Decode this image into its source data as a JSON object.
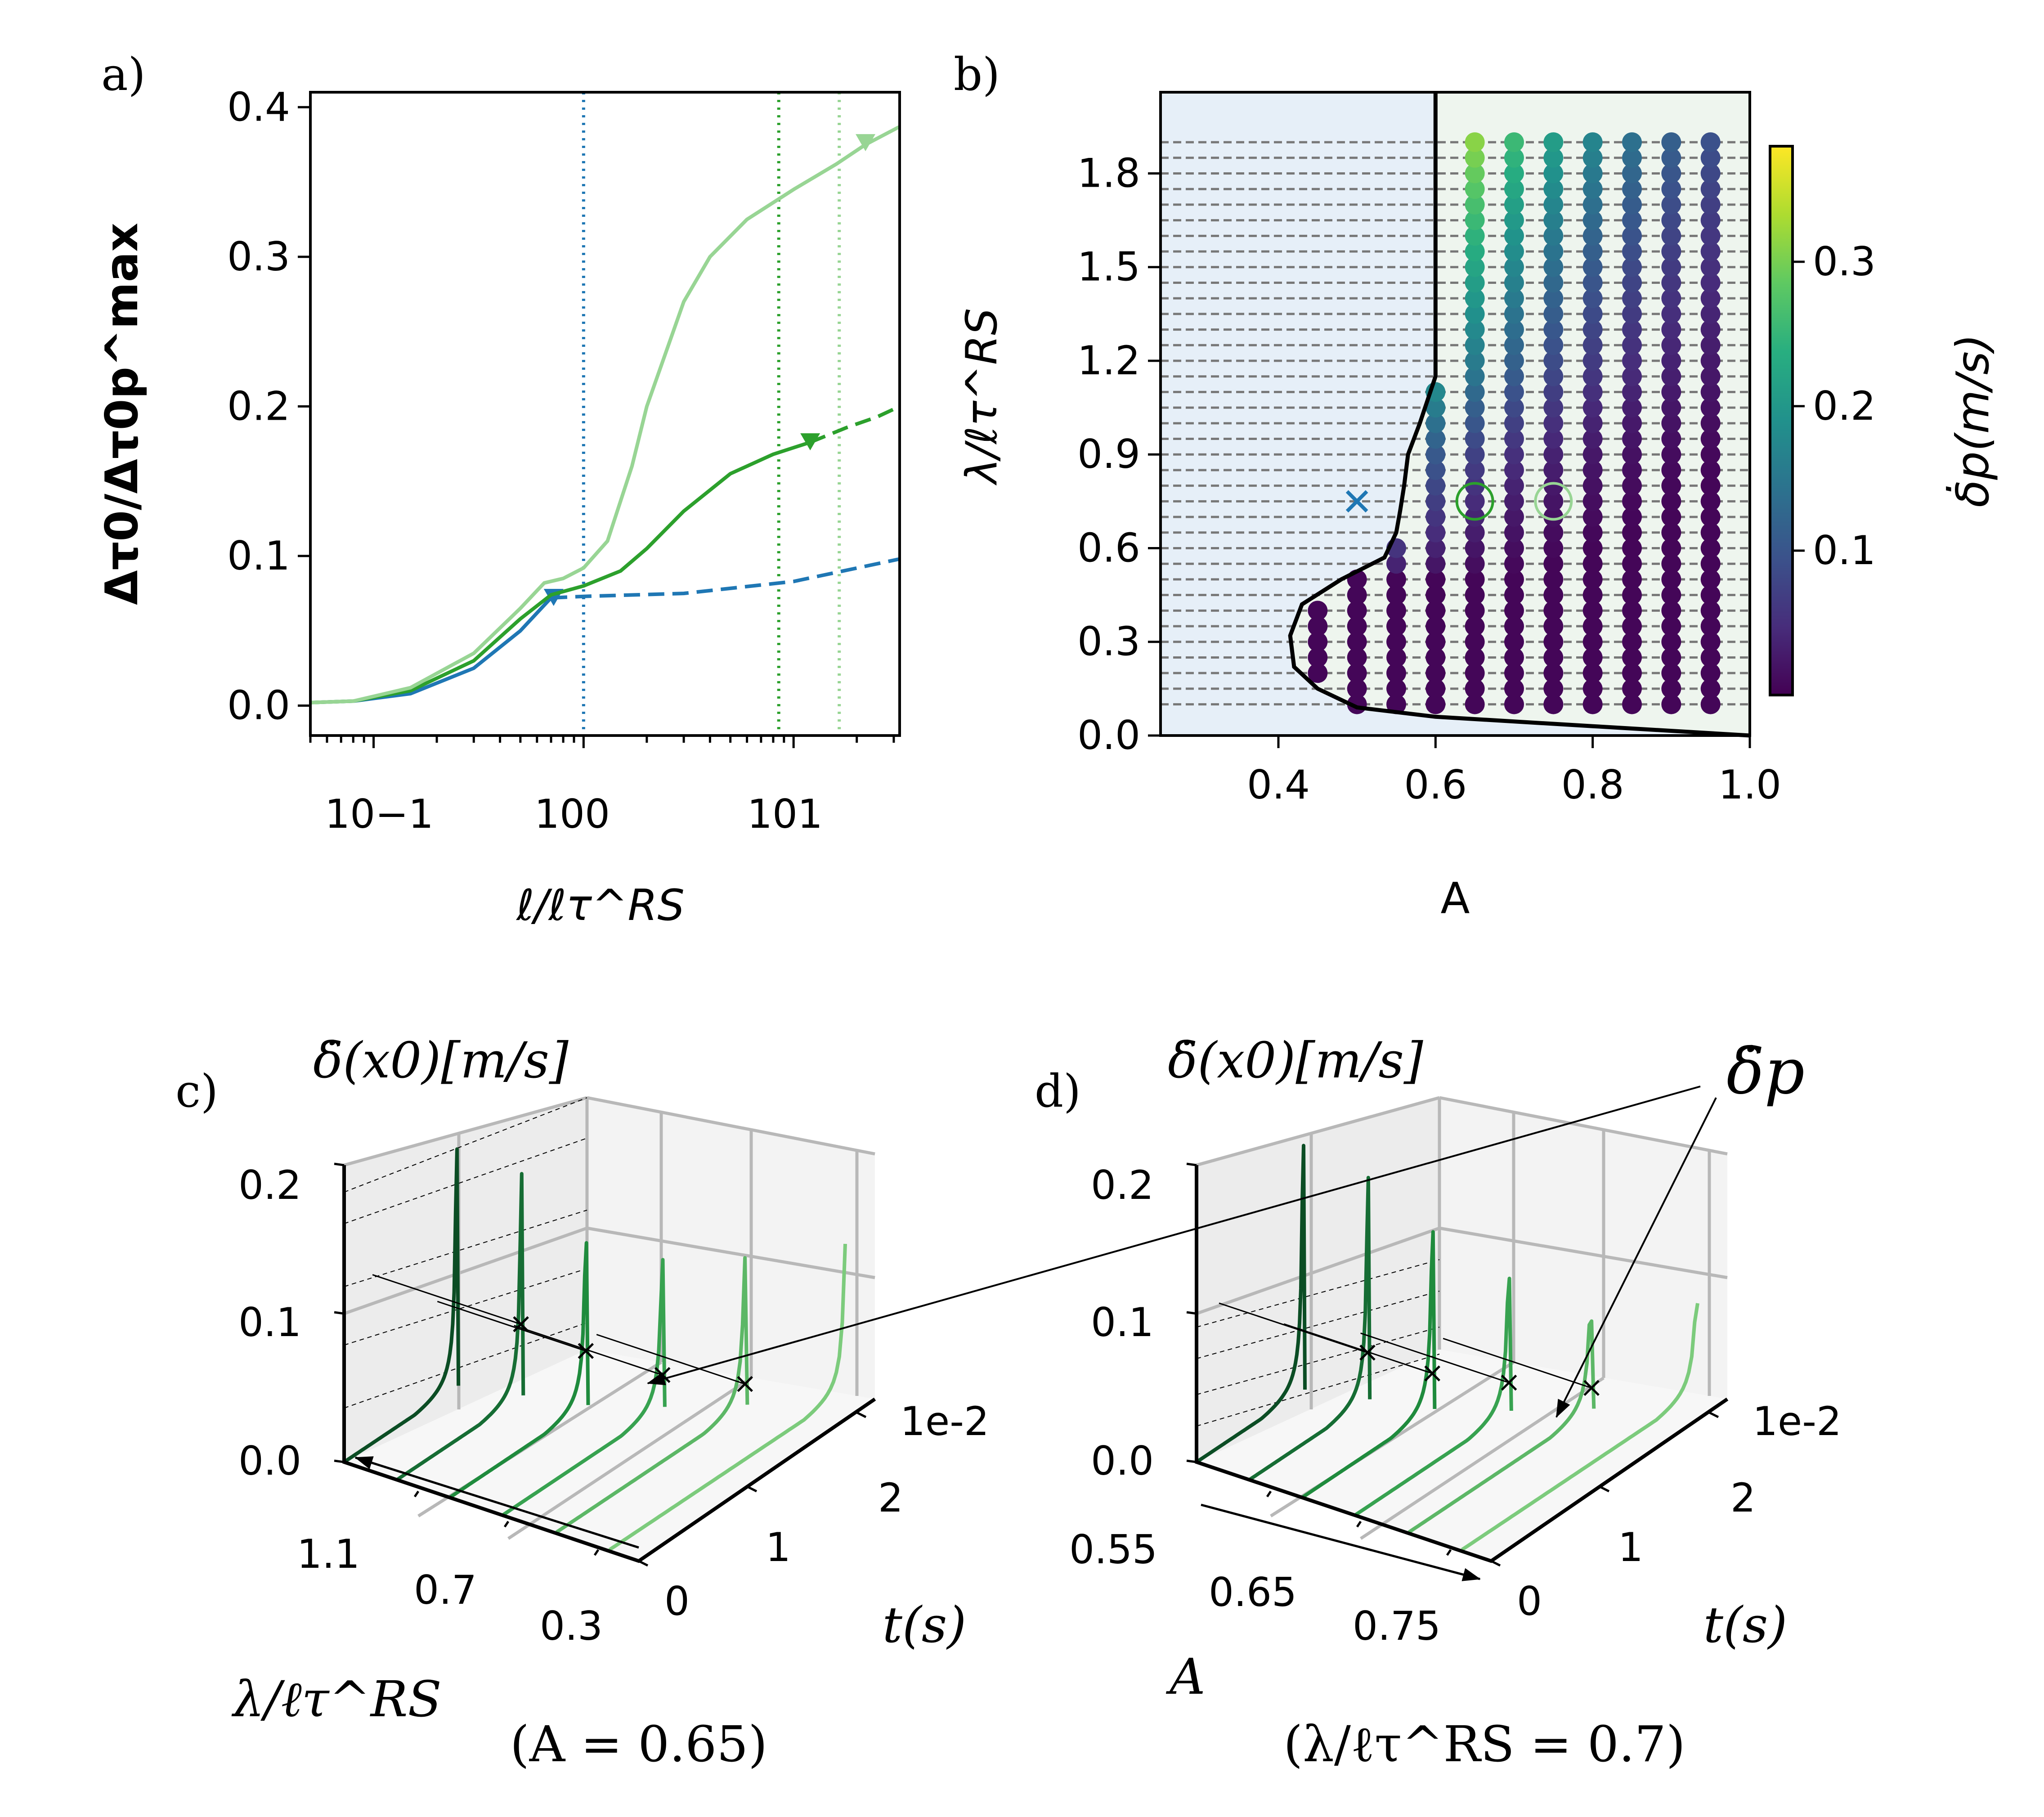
{
  "panels": {
    "a": {
      "label": "a)"
    },
    "b": {
      "label": "b)"
    },
    "c": {
      "label": "c)"
    },
    "d": {
      "label": "d)"
    }
  },
  "chart_data": [
    {
      "panel": "a",
      "type": "line",
      "xscale": "log",
      "xlim": [
        0.05,
        32
      ],
      "ylim": [
        -0.02,
        0.41
      ],
      "ylabel": "Δτ0/Δτ0p^max",
      "xlabel": "ℓ/ℓτ^RS",
      "xtick_labels": [
        "10−1",
        "100",
        "101"
      ],
      "ytick_labels": [
        "0.0",
        "0.1",
        "0.2",
        "0.3",
        "0.4"
      ],
      "yticks": [
        0.0,
        0.1,
        0.2,
        0.3,
        0.4
      ],
      "vlines": [
        {
          "x": 1.0,
          "color": "#1f77b4"
        },
        {
          "x": 8.5,
          "color": "#2ca02c"
        },
        {
          "x": 16.5,
          "color": "#98d594"
        }
      ],
      "series": [
        {
          "name": "blue",
          "color": "#1f77b4",
          "solid_x": [
            0.05,
            0.08,
            0.15,
            0.3,
            0.5,
            0.7
          ],
          "solid_y": [
            0.002,
            0.003,
            0.008,
            0.025,
            0.05,
            0.072
          ],
          "dashed_x": [
            0.7,
            1.0,
            3.0,
            10.0,
            32.0
          ],
          "dashed_y": [
            0.072,
            0.073,
            0.075,
            0.083,
            0.098
          ],
          "marker_x": 0.72,
          "marker_y": 0.072
        },
        {
          "name": "green",
          "color": "#2ca02c",
          "solid_x": [
            0.05,
            0.08,
            0.15,
            0.3,
            0.5,
            0.7,
            1.0,
            1.5,
            2.0,
            3.0,
            5.0,
            8.0,
            12.0
          ],
          "solid_y": [
            0.002,
            0.003,
            0.01,
            0.03,
            0.058,
            0.074,
            0.08,
            0.09,
            0.105,
            0.13,
            0.155,
            0.168,
            0.176
          ],
          "dashed_x": [
            12.0,
            18.0,
            25.0,
            32.0
          ],
          "dashed_y": [
            0.176,
            0.186,
            0.193,
            0.2
          ],
          "marker_x": 12.0,
          "marker_y": 0.176
        },
        {
          "name": "light green",
          "color": "#98d594",
          "solid_x": [
            0.05,
            0.08,
            0.15,
            0.3,
            0.5,
            0.65,
            0.8,
            1.0,
            1.3,
            1.7,
            2.0,
            3.0,
            4.0,
            6.0,
            10.0,
            16.0,
            22.0,
            32.0
          ],
          "solid_y": [
            0.002,
            0.003,
            0.012,
            0.035,
            0.065,
            0.082,
            0.085,
            0.092,
            0.11,
            0.16,
            0.2,
            0.27,
            0.3,
            0.325,
            0.345,
            0.362,
            0.375,
            0.387
          ],
          "marker_x": 22.0,
          "marker_y": 0.376
        }
      ]
    },
    {
      "panel": "b",
      "type": "scatter",
      "xlabel": "A",
      "ylabel": "λ/ℓτ^RS",
      "xlim": [
        0.25,
        1.0
      ],
      "ylim": [
        0.0,
        2.06
      ],
      "xticks": [
        0.4,
        0.6,
        0.8,
        1.0
      ],
      "xtick_labels": [
        "0.4",
        "0.6",
        "0.8",
        "1.0"
      ],
      "yticks": [
        0.0,
        0.3,
        0.6,
        0.9,
        1.2,
        1.5,
        1.8
      ],
      "ytick_labels": [
        "0.0",
        "0.3",
        "0.6",
        "0.9",
        "1.2",
        "1.5",
        "1.8"
      ],
      "colorbar": {
        "label": "δ̇p(m/s)",
        "min": 0.0,
        "max": 0.38,
        "ticks": [
          0.1,
          0.2,
          0.3
        ],
        "tick_labels": [
          "0.1",
          "0.2",
          "0.3"
        ]
      },
      "boundary_A": [
        0.6,
        0.6,
        0.6,
        0.6,
        0.6,
        0.6,
        0.58,
        0.565,
        0.56,
        0.555,
        0.55,
        0.535,
        0.48,
        0.43,
        0.415,
        0.42,
        0.45,
        0.5,
        0.6,
        0.8,
        1.0
      ],
      "boundary_lambda": [
        2.06,
        1.9,
        1.75,
        1.55,
        1.35,
        1.15,
        1.0,
        0.9,
        0.8,
        0.72,
        0.65,
        0.57,
        0.5,
        0.42,
        0.32,
        0.22,
        0.15,
        0.09,
        0.06,
        0.03,
        0.0
      ],
      "A_values": [
        0.45,
        0.5,
        0.55,
        0.6,
        0.65,
        0.7,
        0.75,
        0.8,
        0.85,
        0.9,
        0.95
      ],
      "lambda_values": [
        0.1,
        0.15,
        0.2,
        0.25,
        0.3,
        0.35,
        0.4,
        0.45,
        0.5,
        0.55,
        0.6,
        0.65,
        0.7,
        0.75,
        0.8,
        0.85,
        0.9,
        0.95,
        1.0,
        1.05,
        1.1,
        1.15,
        1.2,
        1.25,
        1.3,
        1.35,
        1.4,
        1.45,
        1.5,
        1.55,
        1.6,
        1.65,
        1.7,
        1.75,
        1.8,
        1.85,
        1.9
      ],
      "cross_marker": {
        "A": 0.5,
        "lambda": 0.75
      },
      "circle_markers": [
        {
          "A": 0.65,
          "lambda": 0.75,
          "color": "#2ca02c"
        },
        {
          "A": 0.75,
          "lambda": 0.75,
          "color": "#98d594"
        }
      ]
    },
    {
      "panel": "c",
      "type": "line",
      "title": "(A = 0.65)",
      "zlabel": "δ̇(x0)[m/s]",
      "ylabel": "t(s)",
      "xlabel": "λ/ℓτ^RS",
      "ztick_labels": [
        "0.0",
        "0.1",
        "0.2"
      ],
      "ttick_labels": [
        "0",
        "1",
        "2"
      ],
      "t_scale_label": "1e-2",
      "lambda_tick_labels": [
        "1.1",
        "0.7",
        "0.3"
      ],
      "annotation": "δ̇p",
      "curves": [
        {
          "lambda": 1.3,
          "color": "#0b4d24",
          "t_peak": 0.95,
          "peak": 0.32
        },
        {
          "lambda": 1.1,
          "color": "#166d34",
          "t_peak": 1.05,
          "peak": 0.3
        },
        {
          "lambda": 0.9,
          "color": "#1f8b3d",
          "t_peak": 1.15,
          "peak": 0.22
        },
        {
          "lambda": 0.7,
          "color": "#37a250",
          "t_peak": 1.35,
          "peak": 0.2
        },
        {
          "lambda": 0.5,
          "color": "#5cb766",
          "t_peak": 1.6,
          "peak": 0.2
        },
        {
          "lambda": 0.3,
          "color": "#7ccb7c",
          "t_peak": 2.0,
          "peak": 0.2
        }
      ],
      "peak_markers": [
        0.098,
        0.075,
        0.045,
        0.03
      ]
    },
    {
      "panel": "d",
      "type": "line",
      "title": "(λ/ℓτ^RS = 0.7)",
      "zlabel": "δ̇(x0)[m/s]",
      "ylabel": "t(s)",
      "xlabel": "A",
      "ztick_labels": [
        "0.0",
        "0.1",
        "0.2"
      ],
      "ttick_labels": [
        "0",
        "1",
        "2"
      ],
      "t_scale_label": "1e-2",
      "A_tick_labels": [
        "0.55",
        "0.65",
        "0.75"
      ],
      "curves": [
        {
          "A": 0.55,
          "color": "#0b4d24",
          "t_peak": 0.9,
          "peak": 0.33
        },
        {
          "A": 0.6,
          "color": "#166d34",
          "t_peak": 1.0,
          "peak": 0.3
        },
        {
          "A": 0.65,
          "color": "#1f8b3d",
          "t_peak": 1.1,
          "peak": 0.24
        },
        {
          "A": 0.7,
          "color": "#37a250",
          "t_peak": 1.3,
          "peak": 0.18
        },
        {
          "A": 0.75,
          "color": "#5cb766",
          "t_peak": 1.55,
          "peak": 0.12
        },
        {
          "A": 0.8,
          "color": "#7ccb7c",
          "t_peak": 2.0,
          "peak": 0.12
        }
      ],
      "peak_markers": [
        0.065,
        0.05,
        0.04,
        0.03
      ]
    }
  ]
}
